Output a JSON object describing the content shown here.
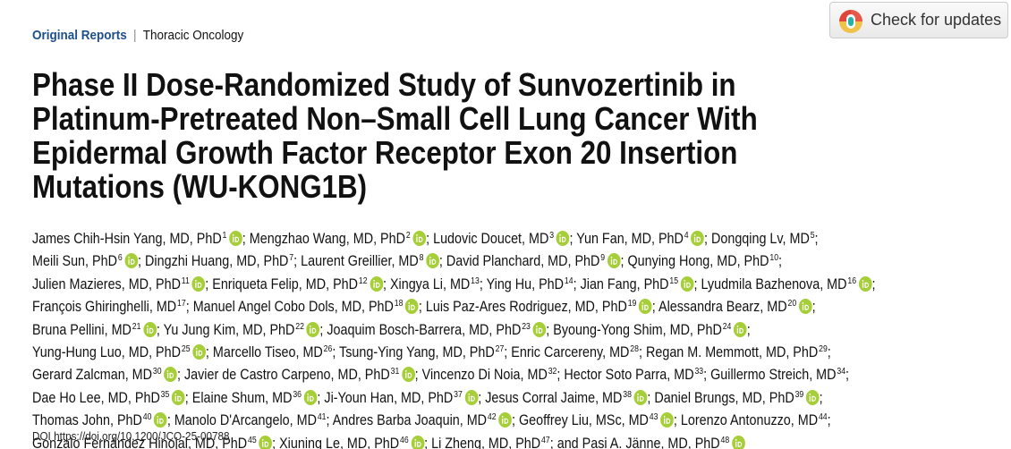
{
  "header": {
    "section": "Original Reports",
    "divider": "|",
    "category": "Thoracic Oncology",
    "updates": "Check for updates"
  },
  "title_lines": [
    "Phase II Dose-Randomized Study of Sunvozertinib in",
    "Platinum-Pretreated Non–Small Cell Lung Cancer With",
    "Epidermal Growth Factor Receptor Exon 20 Insertion",
    "Mutations (WU-KONG1B)"
  ],
  "author_separator": ";",
  "author_lines": [
    [
      {
        "name": "James Chih-Hsin Yang, MD, PhD",
        "sup": 1,
        "orcid": true
      },
      {
        "name": "Mengzhao Wang, MD, PhD",
        "sup": 2,
        "orcid": true
      },
      {
        "name": "Ludovic Doucet, MD",
        "sup": 3,
        "orcid": true
      },
      {
        "name": "Yun Fan, MD, PhD",
        "sup": 4,
        "orcid": true
      },
      {
        "name": "Dongqing Lv, MD",
        "sup": 5,
        "orcid": false
      }
    ],
    [
      {
        "name": "Meili Sun, PhD",
        "sup": 6,
        "orcid": true
      },
      {
        "name": "Dingzhi Huang, MD, PhD",
        "sup": 7,
        "orcid": false
      },
      {
        "name": "Laurent Greillier, MD",
        "sup": 8,
        "orcid": true
      },
      {
        "name": "David Planchard, MD, PhD",
        "sup": 9,
        "orcid": true
      },
      {
        "name": "Qunying Hong, MD, PhD",
        "sup": 10,
        "orcid": false
      }
    ],
    [
      {
        "name": "Julien Mazieres, MD, PhD",
        "sup": 11,
        "orcid": true
      },
      {
        "name": "Enriqueta Felip, MD, PhD",
        "sup": 12,
        "orcid": true
      },
      {
        "name": "Xingya Li, MD",
        "sup": 13,
        "orcid": false
      },
      {
        "name": "Ying Hu, PhD",
        "sup": 14,
        "orcid": false
      },
      {
        "name": "Jian Fang, PhD",
        "sup": 15,
        "orcid": true
      },
      {
        "name": "Lyudmila Bazhenova, MD",
        "sup": 16,
        "orcid": true
      }
    ],
    [
      {
        "name": "François Ghiringhelli, MD",
        "sup": 17,
        "orcid": false
      },
      {
        "name": "Manuel Angel Cobo Dols, MD, PhD",
        "sup": 18,
        "orcid": true
      },
      {
        "name": "Luis Paz-Ares Rodriguez, MD, PhD",
        "sup": 19,
        "orcid": true
      },
      {
        "name": "Alessandra Bearz, MD",
        "sup": 20,
        "orcid": true
      }
    ],
    [
      {
        "name": "Bruna Pellini, MD",
        "sup": 21,
        "orcid": true
      },
      {
        "name": "Yu Jung Kim, MD, PhD",
        "sup": 22,
        "orcid": true
      },
      {
        "name": "Joaquim Bosch-Barrera, MD, PhD",
        "sup": 23,
        "orcid": true
      },
      {
        "name": "Byoung-Yong Shim, MD, PhD",
        "sup": 24,
        "orcid": true
      }
    ],
    [
      {
        "name": "Yung-Hung Luo, MD, PhD",
        "sup": 25,
        "orcid": true
      },
      {
        "name": "Marcello Tiseo, MD",
        "sup": 26,
        "orcid": false
      },
      {
        "name": "Tsung-Ying Yang, MD, PhD",
        "sup": 27,
        "orcid": false
      },
      {
        "name": "Enric Carcereny, MD",
        "sup": 28,
        "orcid": false
      },
      {
        "name": "Regan M. Memmott, MD, PhD",
        "sup": 29,
        "orcid": false
      }
    ],
    [
      {
        "name": "Gerard Zalcman, MD",
        "sup": 30,
        "orcid": true
      },
      {
        "name": "Javier de Castro Carpeno, MD, PhD",
        "sup": 31,
        "orcid": true
      },
      {
        "name": "Vincenzo Di Noia, MD",
        "sup": 32,
        "orcid": false
      },
      {
        "name": "Hector Soto Parra, MD",
        "sup": 33,
        "orcid": false
      },
      {
        "name": "Guillermo Streich, MD",
        "sup": 34,
        "orcid": false
      }
    ],
    [
      {
        "name": "Dae Ho Lee, MD, PhD",
        "sup": 35,
        "orcid": true
      },
      {
        "name": "Elaine Shum, MD",
        "sup": 36,
        "orcid": true
      },
      {
        "name": "Ji-Youn Han, MD, PhD",
        "sup": 37,
        "orcid": true
      },
      {
        "name": "Jesus Corral Jaime, MD",
        "sup": 38,
        "orcid": true
      },
      {
        "name": "Daniel Brungs, MD, PhD",
        "sup": 39,
        "orcid": true
      }
    ],
    [
      {
        "name": "Thomas John, PhD",
        "sup": 40,
        "orcid": true
      },
      {
        "name": "Manolo D'Arcangelo, MD",
        "sup": 41,
        "orcid": false
      },
      {
        "name": "Andres Barba Joaquin, MD",
        "sup": 42,
        "orcid": true
      },
      {
        "name": "Geoffrey Liu, MSc, MD",
        "sup": 43,
        "orcid": true
      },
      {
        "name": "Lorenzo Antonuzzo, MD",
        "sup": 44,
        "orcid": false
      }
    ],
    [
      {
        "name": "Gonzalo Fernández Hinojal, MD, PhD",
        "sup": 45,
        "orcid": true
      },
      {
        "name": "Xiuning Le, MD, PhD",
        "sup": 46,
        "orcid": true
      },
      {
        "name": "Li Zheng, MD, PhD",
        "sup": 47,
        "orcid": false
      },
      {
        "prefix": "and",
        "name": "Pasi A. Jänne, MD, PhD",
        "sup": 48,
        "orcid": true
      }
    ]
  ],
  "doi": {
    "label": "DOI",
    "url": "https://doi.org/10.1200/JCO-25-00788"
  }
}
